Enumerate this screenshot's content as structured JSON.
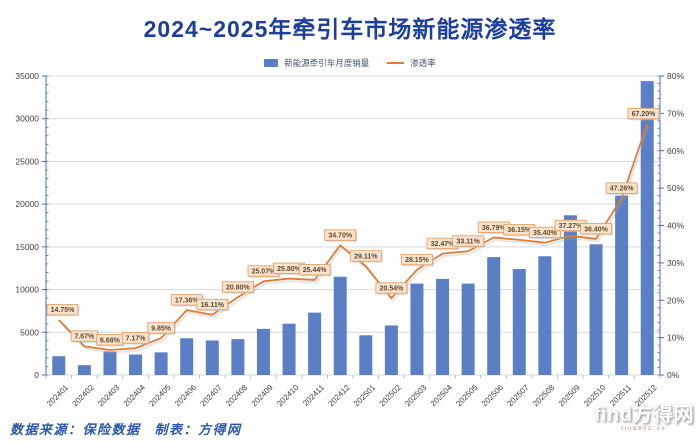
{
  "header": {
    "title": "2024~2025年牵引车市场新能源渗透率",
    "title_color": "#1c3f9d"
  },
  "legend": {
    "items": [
      {
        "label": "新能源牵引车月度销量",
        "marker": "bar",
        "color": "#5b7fc4"
      },
      {
        "label": "渗透率",
        "marker": "line",
        "color": "#e07b35"
      }
    ]
  },
  "footer": {
    "source_label": "数据来源：保险数据",
    "maker_label": "制表：方得网",
    "color": "#2c58a7"
  },
  "watermark": {
    "text": "find方得网",
    "subtext": "find800.cn"
  },
  "chart_data": {
    "type": "combo",
    "title": "2024~2025年牵引车市场新能源渗透率",
    "categories": [
      "202401",
      "202402",
      "202403",
      "202404",
      "202405",
      "202406",
      "202407",
      "202408",
      "202409",
      "202410",
      "202411",
      "202412",
      "202501",
      "202502",
      "202503",
      "202504",
      "202505",
      "202506",
      "202507",
      "202508",
      "202509",
      "202510",
      "202511",
      "202512"
    ],
    "series": [
      {
        "name": "新能源牵引车月度销量",
        "type": "bar",
        "y_axis": "left",
        "color": "#5b7fc4",
        "values": [
          2200,
          1150,
          2750,
          2400,
          2650,
          4300,
          4050,
          4200,
          5400,
          6000,
          7300,
          11500,
          4650,
          5800,
          10700,
          11250,
          10700,
          13800,
          12400,
          13900,
          18700,
          15300,
          21000,
          34400
        ]
      },
      {
        "name": "渗透率",
        "type": "line",
        "y_axis": "right",
        "color": "#e07b35",
        "values": [
          14.75,
          7.67,
          6.68,
          7.17,
          9.85,
          17.36,
          16.11,
          20.8,
          25.07,
          25.8,
          25.44,
          34.7,
          29.11,
          20.54,
          28.15,
          32.47,
          33.11,
          36.79,
          36.15,
          35.4,
          37.27,
          36.4,
          47.26,
          67.2
        ],
        "point_labels": [
          "14.75%",
          "7.67%",
          "6.68%",
          "7.17%",
          "9.85%",
          "17.36%",
          "16.11%",
          "20.80%",
          "25.07%",
          "25.80%",
          "25.44%",
          "34.70%",
          "29.11%",
          "20.54%",
          "28.15%",
          "32.47%",
          "33.11%",
          "36.79%",
          "36.15%",
          "35.40%",
          "37.27%",
          "36.40%",
          "47.26%",
          "67.20%"
        ],
        "label_style": {
          "bg": "#fbe2ca",
          "border": "#e29a60",
          "text_color": "#5d4a35"
        }
      }
    ],
    "left_axis": {
      "min": 0,
      "max": 35000,
      "step": 5000,
      "minor_step": 1000,
      "tick_labels": [
        "0",
        "5000",
        "10000",
        "15000",
        "20000",
        "25000",
        "30000",
        "35000"
      ]
    },
    "right_axis": {
      "min": 0,
      "max": 80,
      "step": 10,
      "minor_step": 2,
      "tick_labels": [
        "0%",
        "10%",
        "20%",
        "30%",
        "40%",
        "50%",
        "60%",
        "70%",
        "80%"
      ]
    },
    "grid": true,
    "legend_position": "top",
    "axis_line_color": "#4472c4",
    "grid_color": "#d9d9d9",
    "tick_label_color": "#404040"
  }
}
